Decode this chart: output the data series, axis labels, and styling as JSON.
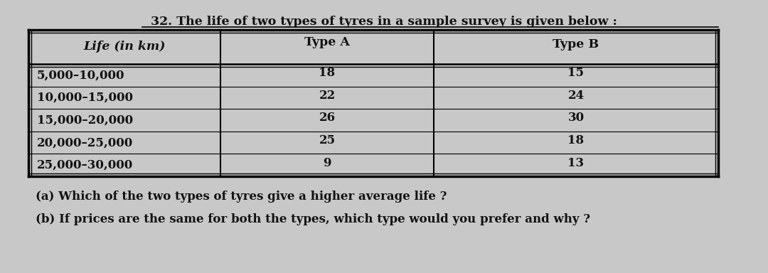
{
  "title": "32. The life of two types of tyres in a sample survey is given below :",
  "col_headers": [
    "Life (in km)",
    "Type A",
    "Type B"
  ],
  "rows": [
    [
      "5,000–10,000",
      "18",
      "15"
    ],
    [
      "10,000–15,000",
      "22",
      "24"
    ],
    [
      "15,000–20,000",
      "26",
      "30"
    ],
    [
      "20,000–25,000",
      "25",
      "18"
    ],
    [
      "25,000–30,000",
      "9",
      "13"
    ]
  ],
  "question_a": "(a) Which of the two types of tyres give a higher average life ?",
  "question_b": "(b) If prices are the same for both the types, which type would you prefer and why ?",
  "bg_color": "#c8c8c8",
  "text_color": "#111111",
  "title_fontsize": 12.5,
  "header_fontsize": 12.5,
  "body_fontsize": 12,
  "question_fontsize": 12
}
